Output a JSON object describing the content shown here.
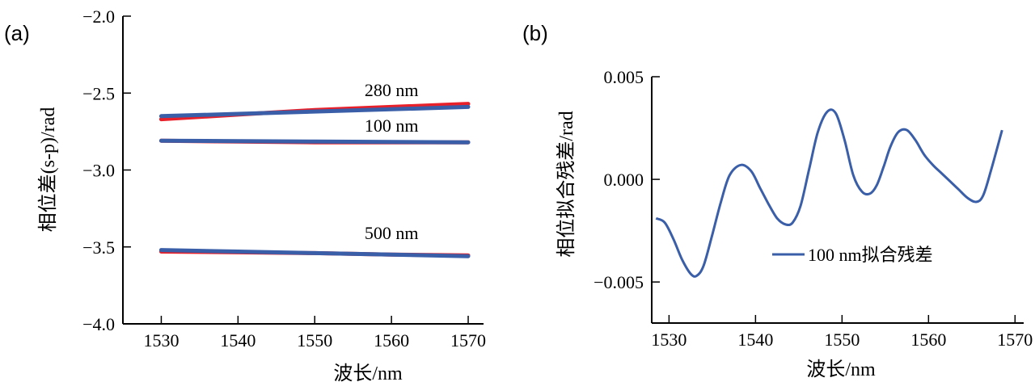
{
  "chart_data": [
    {
      "panel_label": "(a)",
      "type": "line",
      "xlabel": "波长/nm",
      "ylabel": "相位差(s-p)/rad",
      "xlim": [
        1525,
        1572
      ],
      "ylim": [
        -4.0,
        -2.0
      ],
      "xticks": [
        1530,
        1540,
        1550,
        1560,
        1570
      ],
      "yticks": [
        -2.0,
        -2.5,
        -3.0,
        -3.5,
        -4.0
      ],
      "ytick_labels": [
        "−2.0",
        "−2.5",
        "−3.0",
        "−3.5",
        "−4.0"
      ],
      "annotations": [
        "280 nm",
        "100 nm",
        "500 nm"
      ],
      "colors": {
        "measured": "#e8202a",
        "fit": "#3a5fa8"
      },
      "series": [
        {
          "label": "280 nm",
          "x": [
            1530,
            1540,
            1550,
            1560,
            1570
          ],
          "measured": [
            -2.67,
            -2.64,
            -2.61,
            -2.59,
            -2.57
          ],
          "fit": [
            -2.65,
            -2.635,
            -2.62,
            -2.605,
            -2.59
          ]
        },
        {
          "label": "100 nm",
          "x": [
            1530,
            1540,
            1550,
            1560,
            1570
          ],
          "measured": [
            -2.81,
            -2.815,
            -2.82,
            -2.82,
            -2.82
          ],
          "fit": [
            -2.81,
            -2.812,
            -2.815,
            -2.818,
            -2.82
          ]
        },
        {
          "label": "500 nm",
          "x": [
            1530,
            1540,
            1550,
            1560,
            1570
          ],
          "measured": [
            -3.53,
            -3.535,
            -3.54,
            -3.55,
            -3.555
          ],
          "fit": [
            -3.52,
            -3.53,
            -3.54,
            -3.55,
            -3.56
          ]
        }
      ]
    },
    {
      "panel_label": "(b)",
      "type": "line",
      "xlabel": "波长/nm",
      "ylabel": "相位拟合残差/rad",
      "xlim": [
        1528,
        1571
      ],
      "ylim": [
        -0.007,
        0.005
      ],
      "xticks": [
        1530,
        1540,
        1550,
        1560,
        1570
      ],
      "yticks": [
        0.005,
        0.0,
        -0.005
      ],
      "ytick_labels": [
        "0.005",
        "0.000",
        "−0.005"
      ],
      "legend": "100 nm拟合残差",
      "legend_position": "lower-right",
      "colors": {
        "line": "#3a5fa8"
      },
      "series": [
        {
          "name": "100 nm拟合残差",
          "x": [
            1528.5,
            1529.5,
            1530.5,
            1531.5,
            1532.5,
            1533.2,
            1534,
            1535,
            1536,
            1537,
            1538.3,
            1539.5,
            1540.5,
            1541.5,
            1542.5,
            1543.5,
            1544.3,
            1545.2,
            1546.2,
            1547.2,
            1548.3,
            1549.3,
            1550.3,
            1551.3,
            1552.3,
            1553.2,
            1554,
            1554.8,
            1555.6,
            1556.5,
            1557.5,
            1558.5,
            1559.5,
            1560.5,
            1561.5,
            1562.5,
            1563.5,
            1564.5,
            1565.5,
            1566.3,
            1567.2,
            1568.5
          ],
          "y": [
            -0.0019,
            -0.0021,
            -0.0029,
            -0.0039,
            -0.0046,
            -0.0047,
            -0.0042,
            -0.0027,
            -0.0011,
            0.0002,
            0.0007,
            0.0004,
            -0.0004,
            -0.0012,
            -0.0019,
            -0.0022,
            -0.0021,
            -0.0013,
            0.0005,
            0.0023,
            0.0033,
            0.0032,
            0.0019,
            0.0002,
            -0.0006,
            -0.0007,
            -0.0003,
            0.0006,
            0.0016,
            0.0023,
            0.0024,
            0.0019,
            0.0012,
            0.0007,
            0.0003,
            -0.0001,
            -0.0005,
            -0.0009,
            -0.0011,
            -0.0008,
            0.0004,
            0.0024
          ]
        }
      ]
    }
  ]
}
